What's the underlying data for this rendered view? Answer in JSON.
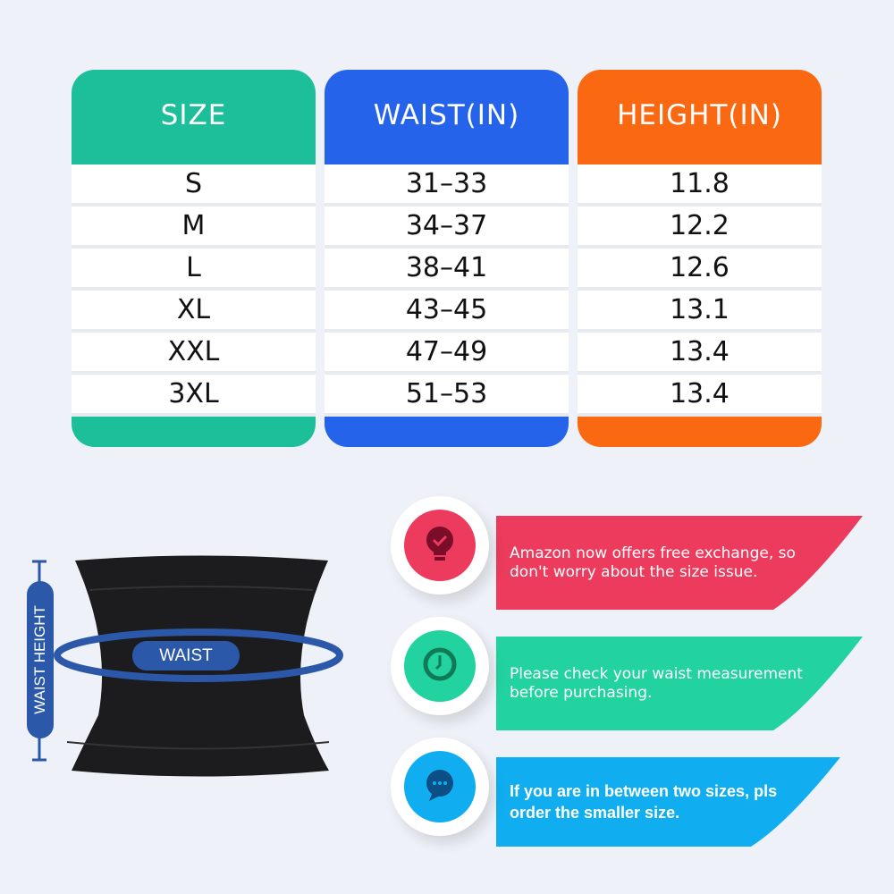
{
  "table": {
    "columns": [
      {
        "header": "SIZE",
        "color": "#1dbf9b",
        "values": [
          "S",
          "M",
          "L",
          "XL",
          "XXL",
          "3XL"
        ]
      },
      {
        "header": "WAIST(IN)",
        "color": "#2563eb",
        "values": [
          "31–33",
          "34–37",
          "38–41",
          "43–45",
          "47–49",
          "51–53"
        ]
      },
      {
        "header": "HEIGHT(IN)",
        "color": "#fa6912",
        "values": [
          "11.8",
          "12.2",
          "12.6",
          "13.1",
          "13.4",
          "13.4"
        ]
      }
    ]
  },
  "diagram": {
    "waist_label": "WAIST",
    "height_label": "WAIST HEIGHT",
    "accent": "#2b58a8"
  },
  "tips": [
    {
      "icon": "lightbulb-check-icon",
      "text": "Amazon now offers free exchange, so don't worry about the size issue.",
      "color": "#ec3b5c"
    },
    {
      "icon": "clock-icon",
      "text": "Please check your waist measurement before purchasing.",
      "color": "#22d3a0"
    },
    {
      "icon": "chat-bubble-icon",
      "text": "If you are in between two sizes, pls order the smaller size.",
      "color": "#10aef0"
    }
  ]
}
